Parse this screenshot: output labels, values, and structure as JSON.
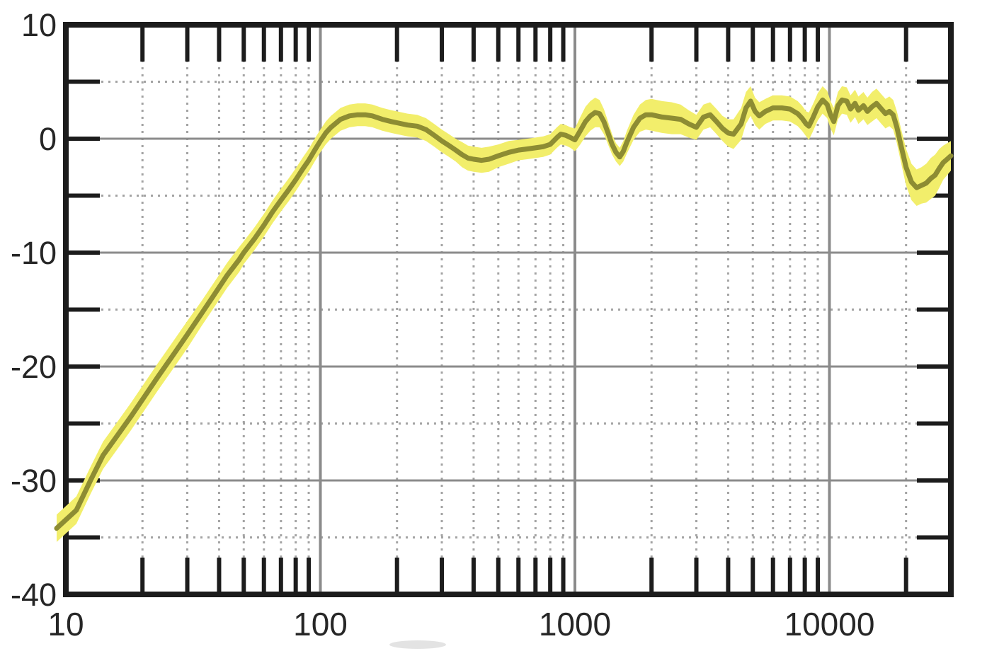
{
  "figure": {
    "kind": "frequency-response-measurement-plot",
    "background": "#ffffff"
  },
  "colors": {
    "border": "#1c1c1c",
    "tick": "#1c1c1c",
    "grid_major": "#8b8b8b",
    "grid_minor": "#a3a3a3",
    "band": "#f2ee6b",
    "curve": "#8d8c33",
    "label": "#262626",
    "smudge": "#9a9a9a"
  },
  "chart_data": {
    "type": "line",
    "title": "",
    "xlabel": "",
    "ylabel": "",
    "x_scale": "log",
    "x_range": [
      10,
      30000
    ],
    "y_range": [
      -40,
      10
    ],
    "grid": "major-solid-minor-dotted",
    "legend_position": "none",
    "x_major_ticks": [
      10,
      100,
      1000,
      10000
    ],
    "x_tick_labels": [
      "10",
      "100",
      "1000",
      "10000"
    ],
    "y_major_ticks": [
      10,
      0,
      -10,
      -20,
      -30,
      -40
    ],
    "y_tick_labels": [
      "10",
      "0",
      "-10",
      "-20",
      "-30",
      "-40"
    ],
    "y_minor_ticks": [
      5,
      -5,
      -15,
      -25,
      -35
    ],
    "series": [
      {
        "name": "tolerance-band",
        "type": "band",
        "color": "#f2ee6b"
      },
      {
        "name": "response-curve",
        "type": "line",
        "color": "#8d8c33"
      }
    ],
    "x_values": [
      10,
      11,
      12.5,
      14,
      16,
      18,
      20,
      23,
      26,
      30,
      34,
      38,
      43,
      48,
      50,
      55,
      60,
      65,
      70,
      75,
      80,
      85,
      90,
      95,
      100,
      105,
      110,
      120,
      130,
      140,
      150,
      160,
      175,
      190,
      200,
      220,
      240,
      260,
      280,
      300,
      320,
      340,
      360,
      380,
      400,
      430,
      460,
      500,
      550,
      600,
      650,
      700,
      750,
      800,
      850,
      880,
      920,
      960,
      1000,
      1050,
      1100,
      1150,
      1200,
      1250,
      1300,
      1350,
      1400,
      1450,
      1500,
      1550,
      1600,
      1700,
      1800,
      1900,
      2000,
      2200,
      2400,
      2600,
      2800,
      3000,
      3200,
      3400,
      3600,
      3800,
      4000,
      4200,
      4500,
      4700,
      4900,
      5100,
      5300,
      5600,
      6000,
      6500,
      7000,
      7500,
      7800,
      8100,
      8300,
      8600,
      9000,
      9400,
      9800,
      10100,
      10400,
      10800,
      11200,
      11700,
      12100,
      12600,
      13000,
      13600,
      14100,
      14700,
      15300,
      16000,
      16600,
      17200,
      17800,
      18400,
      19200,
      20000,
      21000,
      22000,
      23000,
      24000,
      25000,
      26000,
      27000,
      28000,
      29000,
      30000
    ],
    "center": [
      -34.2,
      -32.6,
      -30.0,
      -27.8,
      -26.0,
      -24.4,
      -22.9,
      -20.9,
      -19.2,
      -17.2,
      -15.4,
      -13.8,
      -12.0,
      -10.6,
      -10.0,
      -8.8,
      -7.6,
      -6.4,
      -5.4,
      -4.5,
      -3.6,
      -2.7,
      -1.9,
      -1.0,
      -0.2,
      0.5,
      1.0,
      1.7,
      2.0,
      2.1,
      2.1,
      2.0,
      1.7,
      1.5,
      1.4,
      1.2,
      1.1,
      0.8,
      0.3,
      -0.2,
      -0.6,
      -1.0,
      -1.4,
      -1.7,
      -1.8,
      -1.9,
      -1.8,
      -1.5,
      -1.2,
      -1.0,
      -0.9,
      -0.8,
      -0.7,
      -0.5,
      0.1,
      0.4,
      0.3,
      0.1,
      -0.1,
      0.7,
      1.5,
      2.0,
      2.3,
      2.2,
      1.5,
      0.5,
      -0.5,
      -1.2,
      -1.6,
      -1.1,
      -0.3,
      1.0,
      1.8,
      2.1,
      2.1,
      1.9,
      1.8,
      1.7,
      1.3,
      1.0,
      1.9,
      2.1,
      1.5,
      0.9,
      0.5,
      0.4,
      1.3,
      2.7,
      3.3,
      2.4,
      2.0,
      2.4,
      2.7,
      2.7,
      2.6,
      2.2,
      1.8,
      1.3,
      1.1,
      1.8,
      2.8,
      3.4,
      3.0,
      2.1,
      1.5,
      2.9,
      3.4,
      3.3,
      2.6,
      3.1,
      2.5,
      2.9,
      2.4,
      2.8,
      3.1,
      2.6,
      2.2,
      2.4,
      2.1,
      1.0,
      -0.8,
      -2.5,
      -3.8,
      -4.3,
      -4.1,
      -3.9,
      -3.5,
      -3.2,
      -2.6,
      -2.1,
      -1.8,
      -1.5
    ],
    "half_width": [
      1.2,
      1.2,
      1.2,
      1.2,
      1.2,
      1.2,
      1.2,
      1.2,
      1.2,
      1.2,
      1.1,
      1.1,
      1.1,
      1.1,
      1.0,
      1.0,
      1.0,
      1.0,
      1.0,
      1.0,
      1.0,
      1.0,
      1.0,
      1.0,
      1.0,
      1.0,
      1.0,
      1.0,
      1.0,
      1.0,
      1.0,
      1.0,
      1.0,
      1.0,
      1.0,
      1.0,
      1.0,
      1.0,
      1.0,
      1.0,
      1.0,
      1.0,
      1.1,
      1.1,
      1.1,
      1.1,
      1.1,
      1.0,
      1.0,
      0.9,
      0.9,
      0.9,
      0.9,
      0.9,
      0.9,
      0.9,
      0.9,
      0.9,
      1.0,
      1.2,
      1.3,
      1.3,
      1.3,
      1.2,
      1.1,
      1.0,
      0.9,
      0.8,
      0.8,
      0.9,
      1.0,
      1.1,
      1.2,
      1.3,
      1.4,
      1.4,
      1.4,
      1.3,
      1.2,
      1.1,
      1.1,
      1.1,
      1.1,
      1.1,
      1.2,
      1.3,
      1.4,
      1.4,
      1.3,
      1.2,
      1.2,
      1.1,
      1.1,
      1.1,
      1.1,
      1.1,
      1.1,
      1.1,
      1.2,
      1.2,
      1.2,
      1.2,
      1.2,
      1.2,
      1.2,
      1.2,
      1.2,
      1.2,
      1.2,
      1.2,
      1.2,
      1.2,
      1.2,
      1.3,
      1.3,
      1.3,
      1.3,
      1.3,
      1.3,
      1.4,
      1.5,
      1.6,
      1.6,
      1.6,
      1.6,
      1.7,
      1.8,
      1.8,
      1.7,
      1.5,
      1.4,
      1.3
    ]
  }
}
